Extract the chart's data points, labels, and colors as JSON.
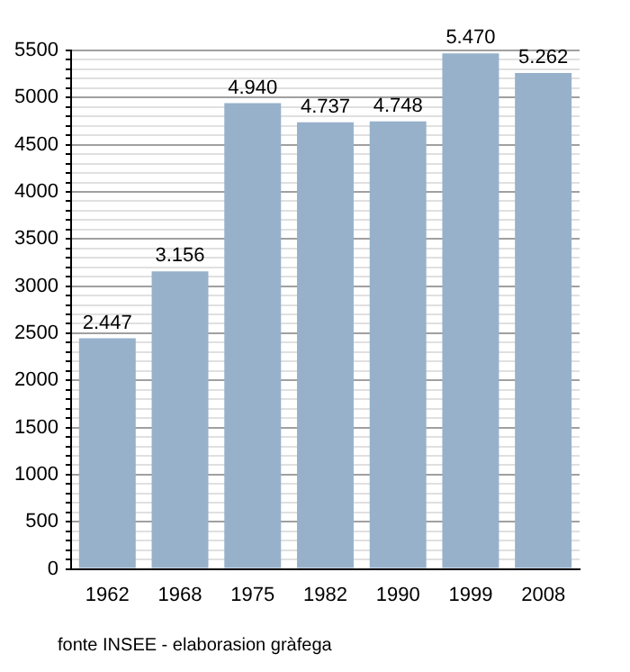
{
  "chart_data": {
    "type": "bar",
    "categories": [
      "1962",
      "1968",
      "1975",
      "1982",
      "1990",
      "1999",
      "2008"
    ],
    "values": [
      2447,
      3156,
      4940,
      4737,
      4748,
      5470,
      5262
    ],
    "color": "#97b1cb",
    "value_labels": [
      "2.447",
      "3.156",
      "4.940",
      "4.737",
      "4.748",
      "5.470",
      "5.262"
    ],
    "ylim": [
      0,
      5500
    ],
    "yticks": [
      0,
      {
        "value": 100,
        "label": null
      },
      {
        "value": 200,
        "label": null
      },
      {
        "value": 300,
        "label": null
      },
      {
        "value": 400,
        "label": null
      },
      500,
      {
        "value": 600,
        "label": null
      },
      {
        "value": 700,
        "label": null
      },
      {
        "value": 800,
        "label": null
      },
      {
        "value": 900,
        "label": null
      },
      1000,
      {
        "value": 1100,
        "label": null
      },
      {
        "value": 1200,
        "label": null
      },
      {
        "value": 1300,
        "label": null
      },
      {
        "value": 1400,
        "label": null
      },
      1500,
      {
        "value": 1600,
        "label": null
      },
      {
        "value": 1700,
        "label": null
      },
      {
        "value": 1800,
        "label": null
      },
      {
        "value": 1900,
        "label": null
      },
      2000,
      {
        "value": 2100,
        "label": null
      },
      {
        "value": 2200,
        "label": null
      },
      {
        "value": 2300,
        "label": null
      },
      {
        "value": 2400,
        "label": null
      },
      2500,
      {
        "value": 2600,
        "label": null
      },
      {
        "value": 2700,
        "label": null
      },
      {
        "value": 2800,
        "label": null
      },
      {
        "value": 2900,
        "label": null
      },
      3000,
      {
        "value": 3100,
        "label": null
      },
      {
        "value": 3200,
        "label": null
      },
      {
        "value": 3300,
        "label": null
      },
      {
        "value": 3400,
        "label": null
      },
      3500,
      {
        "value": 3600,
        "label": null
      },
      {
        "value": 3700,
        "label": null
      },
      {
        "value": 3800,
        "label": null
      },
      {
        "value": 3900,
        "label": null
      },
      4000,
      {
        "value": 4100,
        "label": null
      },
      {
        "value": 4200,
        "label": null
      },
      {
        "value": 4300,
        "label": null
      },
      {
        "value": 4400,
        "label": null
      },
      4500,
      {
        "value": 4600,
        "label": null
      },
      {
        "value": 4700,
        "label": null
      },
      {
        "value": 4800,
        "label": null
      },
      {
        "value": 4900,
        "label": null
      },
      5000,
      {
        "value": 5100,
        "label": null
      },
      {
        "value": 5200,
        "label": null
      },
      {
        "value": 5300,
        "label": null
      },
      {
        "value": 5400,
        "label": null
      },
      5500
    ],
    "grid": "y",
    "annotations": [
      "fonte INSEE - elaborasion gràfega"
    ]
  }
}
